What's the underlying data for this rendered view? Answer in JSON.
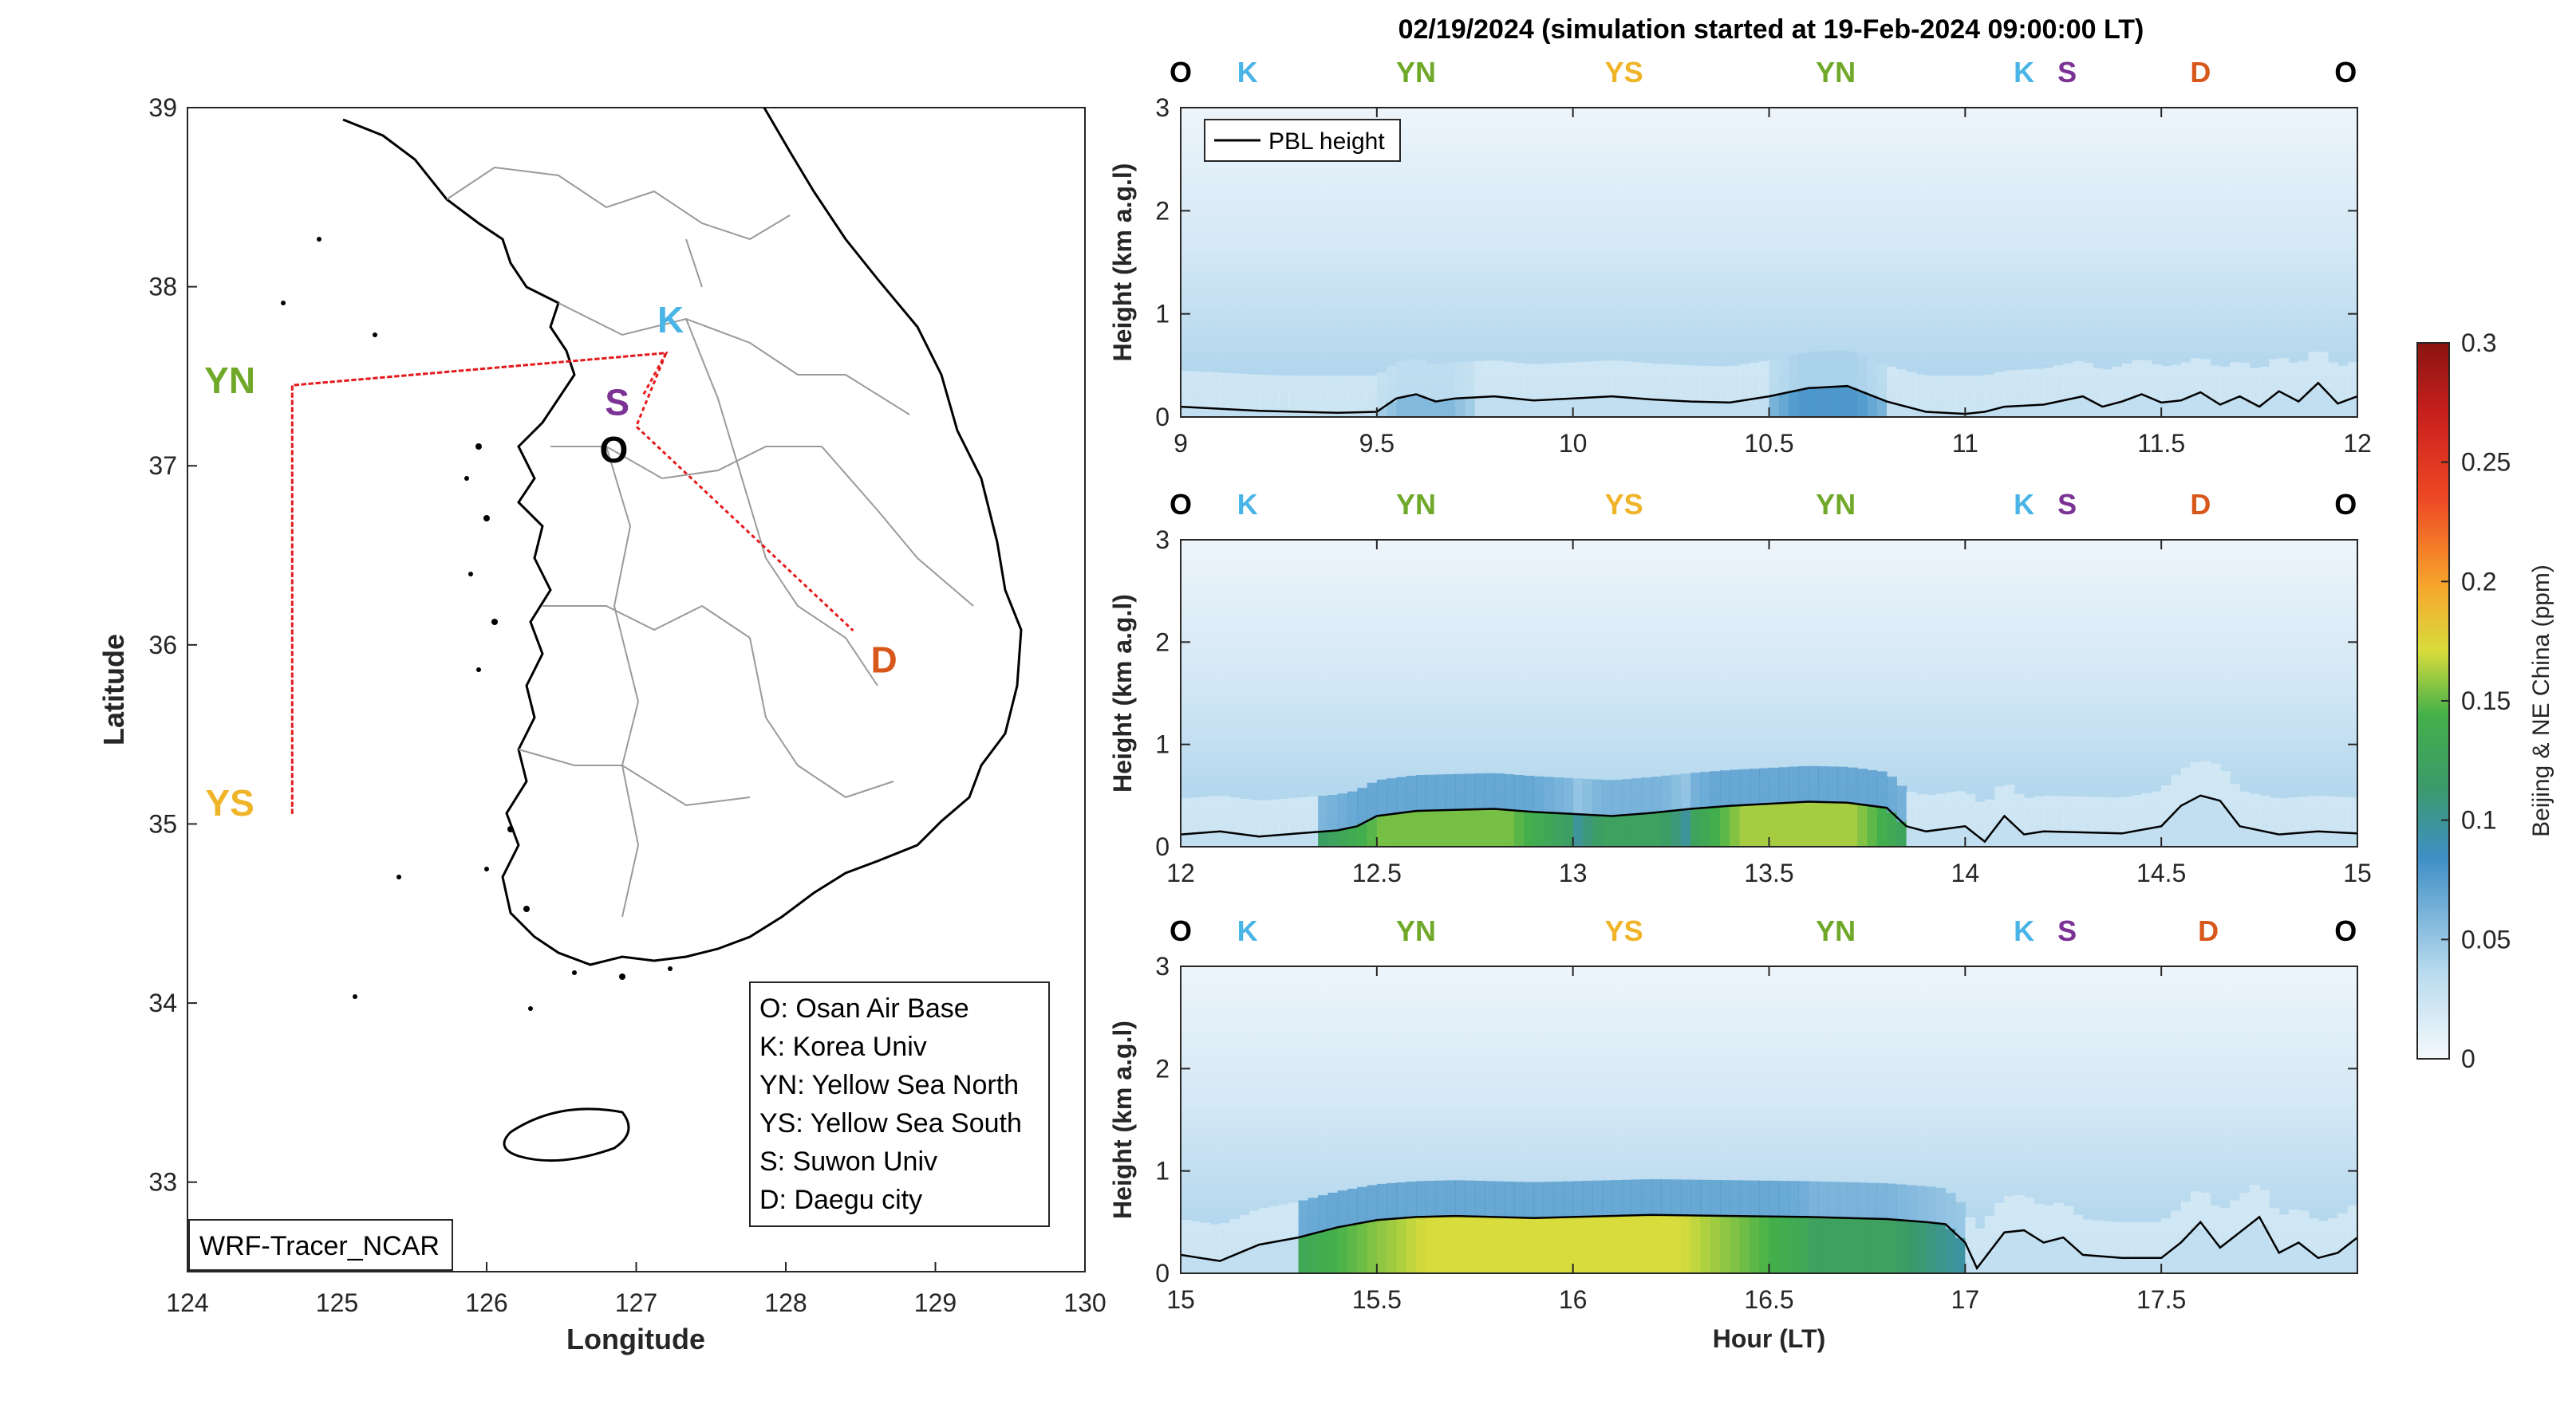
{
  "title": "02/19/2024 (simulation started at 19-Feb-2024 09:00:00 LT)",
  "colors": {
    "O": "#000000",
    "K": "#4ab4e6",
    "YN": "#70a82a",
    "YS": "#f0b429",
    "S": "#7b3294",
    "D": "#d8581c",
    "route": "#e41a1c"
  },
  "map": {
    "xlabel": "Longitude",
    "ylabel": "Latitude",
    "xlim": [
      124,
      130
    ],
    "ylim": [
      32.5,
      39
    ],
    "xticks": [
      "124",
      "125",
      "126",
      "127",
      "128",
      "129",
      "130"
    ],
    "yticks": [
      "33",
      "34",
      "35",
      "36",
      "37",
      "38",
      "39"
    ],
    "model_label": "WRF-Tracer_NCAR",
    "sites": [
      {
        "code": "O",
        "lon": 126.85,
        "lat": 37.1
      },
      {
        "code": "K",
        "lon": 127.15,
        "lat": 37.7
      },
      {
        "code": "YN",
        "lon": 124.55,
        "lat": 37.45
      },
      {
        "code": "YS",
        "lon": 124.55,
        "lat": 35.1
      },
      {
        "code": "S",
        "lon": 126.9,
        "lat": 37.35
      },
      {
        "code": "D",
        "lon": 128.55,
        "lat": 35.9
      }
    ],
    "route": [
      {
        "lon": 127.05,
        "lat": 37.4
      },
      {
        "lon": 127.2,
        "lat": 37.63
      },
      {
        "lon": 124.7,
        "lat": 37.45
      },
      {
        "lon": 124.7,
        "lat": 35.05
      },
      {
        "lon": 124.7,
        "lat": 37.45
      },
      {
        "lon": 127.2,
        "lat": 37.63
      },
      {
        "lon": 127.0,
        "lat": 37.22
      },
      {
        "lon": 128.45,
        "lat": 36.08
      }
    ],
    "legend": [
      "O: Osan Air Base",
      "K: Korea Univ",
      "YN: Yellow Sea North",
      "YS: Yellow Sea South",
      "S: Suwon Univ",
      "D: Daegu city"
    ]
  },
  "chart_data": [
    {
      "type": "heatmap",
      "xlim": [
        9,
        12
      ],
      "ylim": [
        0,
        3
      ],
      "xticks": [
        "9",
        "9.5",
        "10",
        "10.5",
        "11",
        "11.5",
        "12"
      ],
      "yticks": [
        "0",
        "1",
        "2",
        "3"
      ],
      "ylabel": "Height (km a.g.l)",
      "legend": "PBL height",
      "site_labels": [
        {
          "code": "O",
          "x": 9.0
        },
        {
          "code": "K",
          "x": 9.17
        },
        {
          "code": "YN",
          "x": 9.6
        },
        {
          "code": "YS",
          "x": 10.13
        },
        {
          "code": "YN",
          "x": 10.67
        },
        {
          "code": "K",
          "x": 11.15
        },
        {
          "code": "S",
          "x": 11.26
        },
        {
          "code": "D",
          "x": 11.6
        },
        {
          "code": "O",
          "x": 11.97
        }
      ],
      "pbl": {
        "x": [
          9.0,
          9.1,
          9.2,
          9.3,
          9.4,
          9.5,
          9.55,
          9.6,
          9.65,
          9.7,
          9.8,
          9.9,
          10.0,
          10.1,
          10.2,
          10.3,
          10.4,
          10.5,
          10.6,
          10.7,
          10.8,
          10.9,
          11.0,
          11.05,
          11.1,
          11.2,
          11.3,
          11.35,
          11.4,
          11.45,
          11.5,
          11.55,
          11.6,
          11.65,
          11.7,
          11.75,
          11.8,
          11.85,
          11.9,
          11.95,
          12.0
        ],
        "y": [
          0.1,
          0.08,
          0.06,
          0.05,
          0.04,
          0.05,
          0.18,
          0.22,
          0.15,
          0.18,
          0.2,
          0.16,
          0.18,
          0.2,
          0.17,
          0.15,
          0.14,
          0.2,
          0.28,
          0.3,
          0.15,
          0.05,
          0.03,
          0.05,
          0.1,
          0.12,
          0.2,
          0.1,
          0.15,
          0.22,
          0.14,
          0.16,
          0.24,
          0.12,
          0.2,
          0.1,
          0.25,
          0.15,
          0.33,
          0.13,
          0.2
        ]
      },
      "concentration": [
        {
          "x": 9.5,
          "x2": 9.75,
          "h": 0.25,
          "c": 0.055
        },
        {
          "x": 10.5,
          "x2": 10.8,
          "h": 0.35,
          "c": 0.075
        }
      ]
    },
    {
      "type": "heatmap",
      "xlim": [
        12,
        15
      ],
      "ylim": [
        0,
        3
      ],
      "xticks": [
        "12",
        "12.5",
        "13",
        "13.5",
        "14",
        "14.5",
        "15"
      ],
      "yticks": [
        "0",
        "1",
        "2",
        "3"
      ],
      "ylabel": "Height (km a.g.l)",
      "site_labels": [
        {
          "code": "O",
          "x": 12.0
        },
        {
          "code": "K",
          "x": 12.17
        },
        {
          "code": "YN",
          "x": 12.6
        },
        {
          "code": "YS",
          "x": 13.13
        },
        {
          "code": "YN",
          "x": 13.67
        },
        {
          "code": "K",
          "x": 14.15
        },
        {
          "code": "S",
          "x": 14.26
        },
        {
          "code": "D",
          "x": 14.6
        },
        {
          "code": "O",
          "x": 14.97
        }
      ],
      "pbl": {
        "x": [
          12.0,
          12.1,
          12.2,
          12.3,
          12.4,
          12.45,
          12.5,
          12.6,
          12.7,
          12.8,
          12.9,
          13.0,
          13.1,
          13.2,
          13.3,
          13.4,
          13.5,
          13.6,
          13.7,
          13.8,
          13.85,
          13.9,
          14.0,
          14.05,
          14.1,
          14.15,
          14.2,
          14.3,
          14.4,
          14.5,
          14.55,
          14.6,
          14.65,
          14.7,
          14.8,
          14.9,
          15.0
        ],
        "y": [
          0.12,
          0.15,
          0.1,
          0.13,
          0.16,
          0.2,
          0.3,
          0.35,
          0.36,
          0.37,
          0.34,
          0.32,
          0.3,
          0.33,
          0.37,
          0.4,
          0.42,
          0.44,
          0.43,
          0.38,
          0.2,
          0.15,
          0.2,
          0.05,
          0.3,
          0.12,
          0.15,
          0.14,
          0.13,
          0.2,
          0.4,
          0.5,
          0.45,
          0.2,
          0.12,
          0.15,
          0.13
        ]
      },
      "concentration": [
        {
          "x": 12.35,
          "x2": 13.0,
          "h": 0.4,
          "c": 0.15
        },
        {
          "x": 13.0,
          "x2": 13.3,
          "h": 0.38,
          "c": 0.12
        },
        {
          "x": 13.3,
          "x2": 13.85,
          "h": 0.45,
          "c": 0.16
        }
      ]
    },
    {
      "type": "heatmap",
      "xlim": [
        15,
        18
      ],
      "ylim": [
        0,
        3
      ],
      "xticks": [
        "15",
        "15.5",
        "16",
        "16.5",
        "17",
        "17.5"
      ],
      "yticks": [
        "0",
        "1",
        "2",
        "3"
      ],
      "xlabel": "Hour (LT)",
      "ylabel": "Height (km a.g.l)",
      "site_labels": [
        {
          "code": "O",
          "x": 15.0
        },
        {
          "code": "K",
          "x": 15.17
        },
        {
          "code": "YN",
          "x": 15.6
        },
        {
          "code": "YS",
          "x": 16.13
        },
        {
          "code": "YN",
          "x": 16.67
        },
        {
          "code": "K",
          "x": 17.15
        },
        {
          "code": "S",
          "x": 17.26
        },
        {
          "code": "D",
          "x": 17.62
        },
        {
          "code": "O",
          "x": 17.97
        }
      ],
      "pbl": {
        "x": [
          15.0,
          15.05,
          15.1,
          15.15,
          15.2,
          15.3,
          15.4,
          15.5,
          15.6,
          15.7,
          15.8,
          15.9,
          16.0,
          16.2,
          16.4,
          16.6,
          16.8,
          16.9,
          16.95,
          17.0,
          17.03,
          17.1,
          17.15,
          17.2,
          17.25,
          17.3,
          17.4,
          17.5,
          17.55,
          17.6,
          17.65,
          17.7,
          17.75,
          17.8,
          17.85,
          17.9,
          17.95,
          18.0
        ],
        "y": [
          0.18,
          0.15,
          0.12,
          0.2,
          0.28,
          0.35,
          0.45,
          0.52,
          0.55,
          0.56,
          0.55,
          0.54,
          0.55,
          0.57,
          0.56,
          0.55,
          0.53,
          0.5,
          0.48,
          0.3,
          0.05,
          0.4,
          0.42,
          0.3,
          0.35,
          0.18,
          0.15,
          0.15,
          0.3,
          0.5,
          0.25,
          0.4,
          0.55,
          0.2,
          0.3,
          0.15,
          0.2,
          0.35
        ]
      },
      "concentration": [
        {
          "x": 15.3,
          "x2": 16.6,
          "h": 0.55,
          "c": 0.17
        },
        {
          "x": 16.2,
          "x2": 17.0,
          "h": 0.53,
          "c": 0.12
        }
      ]
    }
  ],
  "colorbar": {
    "label": "Beijing & NE China (ppm)",
    "range": [
      0,
      0.3
    ],
    "ticks": [
      "0",
      "0.05",
      "0.1",
      "0.15",
      "0.2",
      "0.25",
      "0.3"
    ]
  }
}
